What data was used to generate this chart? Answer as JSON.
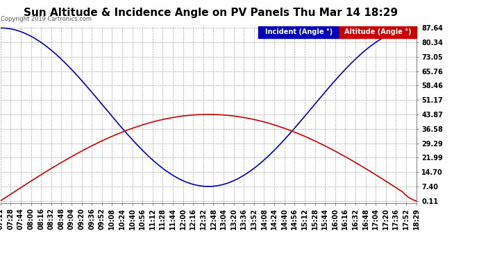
{
  "title": "Sun Altitude & Incidence Angle on PV Panels Thu Mar 14 18:29",
  "copyright": "Copyright 2019 Cartronics.com",
  "yticks": [
    0.11,
    7.4,
    14.7,
    21.99,
    29.29,
    36.58,
    43.87,
    51.17,
    58.46,
    65.76,
    73.05,
    80.34,
    87.64
  ],
  "ymin": 0.11,
  "ymax": 87.64,
  "legend_incident_label": "Incident (Angle °)",
  "legend_altitude_label": "Altitude (Angle °)",
  "incident_color": "#0000bb",
  "altitude_color": "#cc0000",
  "incident_legend_bg": "#0000bb",
  "altitude_legend_bg": "#cc0000",
  "background_color": "#ffffff",
  "grid_color": "#aaaaaa",
  "title_fontsize": 11,
  "copyright_fontsize": 6,
  "tick_fontsize": 7,
  "legend_fontsize": 7,
  "xtick_times": [
    "07:11",
    "07:28",
    "07:44",
    "08:00",
    "08:16",
    "08:32",
    "08:48",
    "09:04",
    "09:20",
    "09:36",
    "09:52",
    "10:08",
    "10:24",
    "10:40",
    "10:56",
    "11:12",
    "11:28",
    "11:44",
    "12:00",
    "12:16",
    "12:32",
    "12:48",
    "13:04",
    "13:20",
    "13:36",
    "13:52",
    "14:08",
    "14:24",
    "14:40",
    "14:56",
    "15:12",
    "15:28",
    "15:44",
    "16:00",
    "16:16",
    "16:32",
    "16:48",
    "17:04",
    "17:20",
    "17:36",
    "17:52",
    "18:29"
  ]
}
